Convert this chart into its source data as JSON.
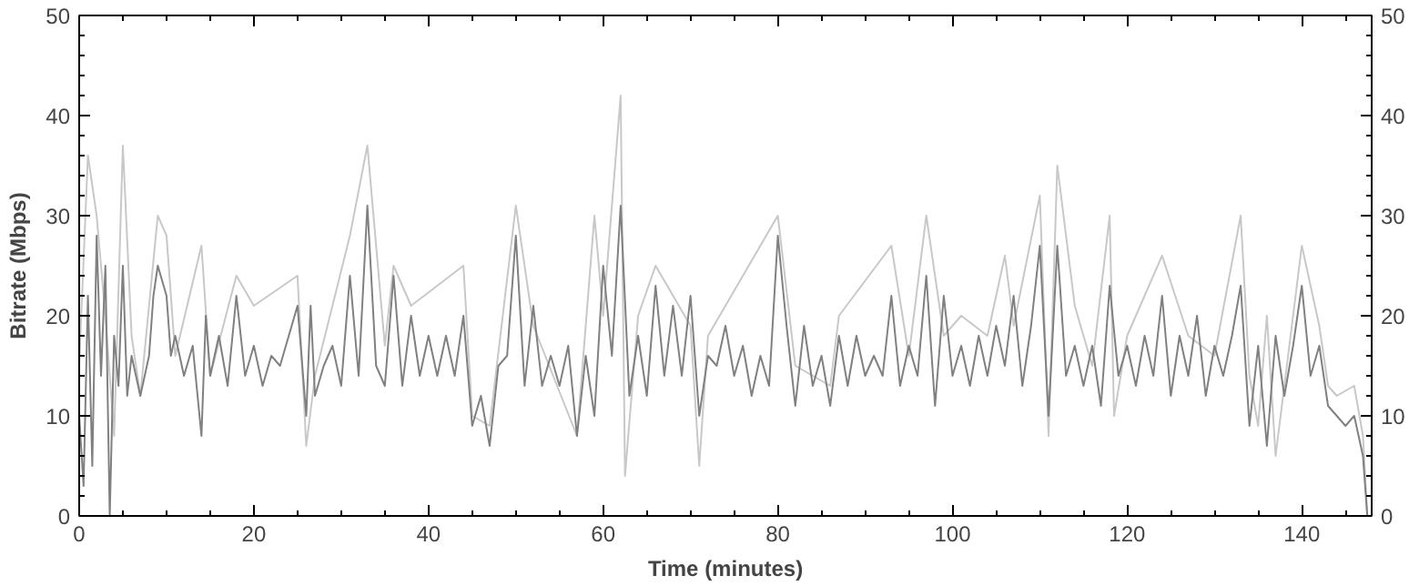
{
  "chart_data": {
    "type": "line",
    "xlabel": "Time (minutes)",
    "ylabel": "Bitrate (Mbps)",
    "xlim": [
      0,
      148
    ],
    "ylim": [
      0,
      50
    ],
    "xticks": [
      0,
      20,
      40,
      60,
      80,
      100,
      120,
      140
    ],
    "yticks": [
      0,
      10,
      20,
      30,
      40,
      50
    ],
    "y2lim": [
      0,
      50
    ],
    "y2ticks": [
      0,
      10,
      20,
      30,
      40,
      50
    ],
    "grid": false,
    "line_style": "solid",
    "series": [
      {
        "color": "#c8c8c8",
        "x": [
          0,
          1,
          2,
          3,
          4,
          5,
          6,
          7,
          9,
          10,
          11,
          14,
          15,
          18,
          20,
          25,
          26,
          27,
          31,
          33,
          35,
          36,
          38,
          44,
          45,
          47,
          50,
          52,
          57,
          59,
          60,
          62,
          62.5,
          64,
          66,
          70,
          71,
          72,
          80,
          82,
          86,
          87,
          93,
          95,
          97,
          99,
          101,
          104,
          106,
          107,
          110,
          111,
          112,
          114,
          116,
          118,
          118.5,
          120,
          124,
          127,
          130,
          133,
          134,
          135,
          136,
          137,
          140,
          142,
          143,
          144,
          146,
          147,
          147.5
        ],
        "values": [
          15,
          36,
          30,
          20,
          8,
          37,
          18,
          12,
          30,
          28,
          16,
          27,
          14,
          24,
          21,
          24,
          7,
          14,
          28,
          37,
          17,
          25,
          21,
          25,
          10,
          9,
          31,
          19,
          8,
          30,
          20,
          42,
          4,
          20,
          25,
          19,
          5,
          18,
          30,
          15,
          13,
          20,
          27,
          16,
          30,
          18,
          20,
          18,
          26,
          19,
          32,
          8,
          35,
          21,
          15,
          30,
          10,
          18,
          26,
          18,
          16,
          30,
          14,
          9,
          20,
          6,
          27,
          19,
          13,
          12,
          13,
          8,
          0
        ]
      },
      {
        "color": "#808080",
        "x": [
          0,
          0.5,
          1,
          1.5,
          2,
          2.5,
          3,
          3.5,
          4,
          4.5,
          5,
          5.5,
          6,
          7,
          8,
          8.5,
          9,
          10,
          10.5,
          11,
          12,
          13,
          14,
          14.5,
          15,
          16,
          17,
          18,
          19,
          20,
          21,
          22,
          23,
          24,
          25,
          26,
          26.5,
          27,
          28,
          29,
          30,
          31,
          32,
          33,
          34,
          35,
          36,
          37,
          38,
          39,
          40,
          41,
          42,
          43,
          44,
          45,
          46,
          47,
          48,
          49,
          50,
          51,
          52,
          53,
          54,
          55,
          56,
          57,
          58,
          59,
          60,
          61,
          62,
          63,
          64,
          65,
          66,
          67,
          68,
          69,
          70,
          71,
          72,
          73,
          74,
          75,
          76,
          77,
          78,
          79,
          80,
          81,
          82,
          83,
          84,
          85,
          86,
          87,
          88,
          89,
          90,
          91,
          92,
          93,
          94,
          95,
          96,
          97,
          98,
          99,
          100,
          101,
          102,
          103,
          104,
          105,
          106,
          107,
          108,
          109,
          110,
          111,
          112,
          113,
          114,
          115,
          116,
          117,
          118,
          119,
          120,
          121,
          122,
          123,
          124,
          125,
          126,
          127,
          128,
          129,
          130,
          131,
          132,
          133,
          134,
          135,
          136,
          137,
          138,
          139,
          140,
          141,
          142,
          143,
          144,
          145,
          146,
          147,
          147.5
        ],
        "values": [
          10,
          3,
          22,
          5,
          28,
          14,
          25,
          0,
          18,
          13,
          25,
          12,
          16,
          12,
          16,
          22,
          25,
          22,
          16,
          18,
          14,
          17,
          8,
          20,
          14,
          18,
          13,
          22,
          14,
          17,
          13,
          16,
          15,
          18,
          21,
          10,
          21,
          12,
          15,
          17,
          13,
          24,
          14,
          31,
          15,
          13,
          24,
          13,
          20,
          14,
          18,
          14,
          18,
          14,
          20,
          9,
          12,
          7,
          15,
          16,
          28,
          13,
          21,
          13,
          16,
          13,
          17,
          8,
          16,
          10,
          25,
          16,
          31,
          12,
          18,
          12,
          23,
          14,
          21,
          14,
          22,
          10,
          16,
          15,
          19,
          14,
          17,
          12,
          16,
          13,
          28,
          19,
          11,
          19,
          13,
          16,
          11,
          18,
          13,
          18,
          14,
          16,
          14,
          22,
          13,
          17,
          14,
          24,
          11,
          22,
          14,
          17,
          13,
          18,
          14,
          19,
          15,
          22,
          13,
          19,
          27,
          10,
          27,
          14,
          17,
          13,
          17,
          11,
          23,
          14,
          17,
          13,
          18,
          14,
          22,
          12,
          18,
          14,
          20,
          12,
          17,
          14,
          18,
          23,
          9,
          17,
          7,
          18,
          12,
          17,
          23,
          14,
          17,
          11,
          10,
          9,
          10,
          6,
          0
        ]
      }
    ]
  }
}
